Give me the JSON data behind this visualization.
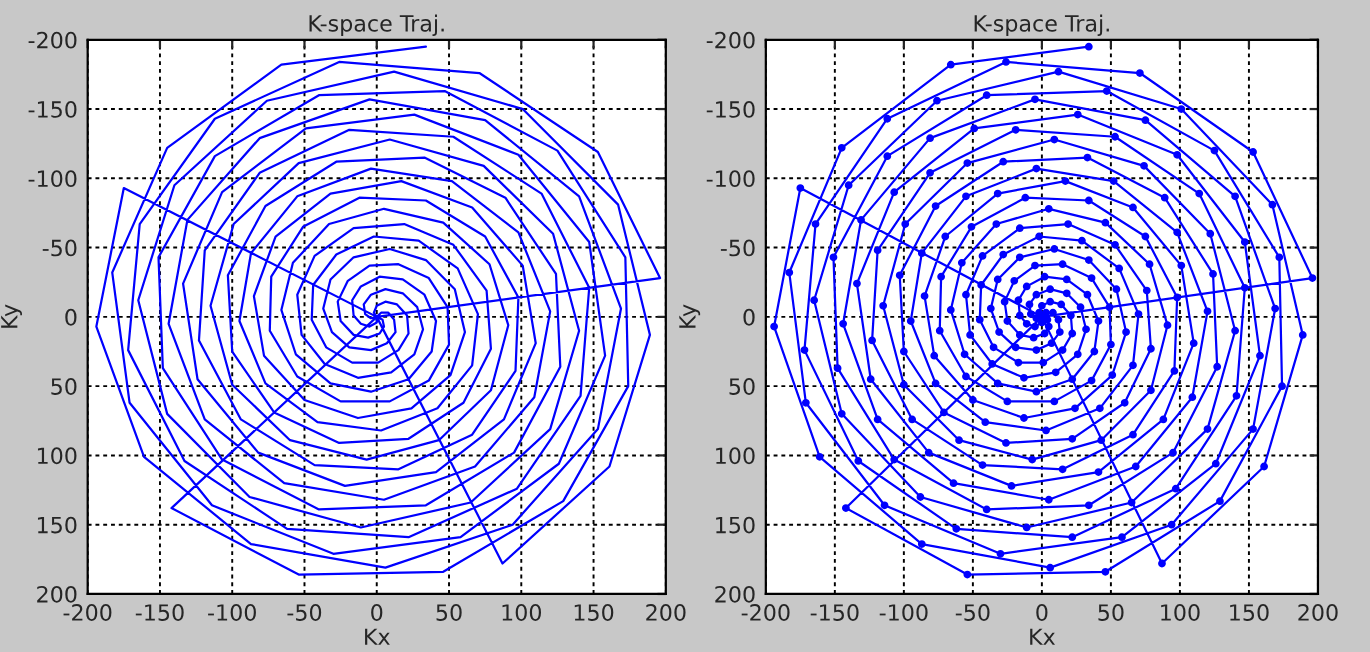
{
  "chart_data": [
    {
      "type": "line",
      "title": "K-space Traj.",
      "xlabel": "Kx",
      "ylabel": "Ky",
      "xlim": [
        -200,
        200
      ],
      "ylim": [
        200,
        -200
      ],
      "xticks": [
        -200,
        -150,
        -100,
        -50,
        0,
        50,
        100,
        150,
        200
      ],
      "yticks": [
        -200,
        -150,
        -100,
        -50,
        0,
        50,
        100,
        150,
        200
      ],
      "grid": true,
      "marker": "none",
      "line_style": "solid",
      "series": [
        {
          "color": "#0000ff",
          "x": [
            0,
            4,
            5,
            2,
            -6,
            -16,
            -25,
            -27,
            -20,
            -5,
            15,
            36,
            49,
            50,
            36,
            9,
            -25,
            -55,
            -74,
            -73,
            -51,
            -12,
            34,
            75,
            98,
            96,
            66,
            15,
            -43,
            -94,
            -123,
            -119,
            -81,
            -19,
            53,
            114,
            147,
            141,
            97,
            22,
            -62,
            -133,
            -172,
            -164,
            -112,
            -26,
            71,
            153,
            196,
            0,
            0,
            -5,
            -11,
            -16,
            -17,
            -11,
            2,
            18,
            33,
            41,
            38,
            22,
            -4,
            -32,
            -56,
            -66,
            -58,
            -33,
            5,
            46,
            78,
            91,
            79,
            43,
            -7,
            -60,
            -100,
            -115,
            -99,
            -54,
            9,
            74,
            122,
            140,
            120,
            65,
            -11,
            -88,
            -145,
            -165,
            -140,
            -76,
            12,
            101,
            167,
            189,
            161,
            87,
            0,
            -4,
            -8,
            -9,
            -4,
            6,
            18,
            28,
            32,
            26,
            10,
            -13,
            -36,
            -52,
            -55,
            -43,
            -16,
            19,
            53,
            76,
            79,
            60,
            22,
            -26,
            -71,
            -100,
            -103,
            -77,
            -28,
            33,
            89,
            124,
            127,
            95,
            34,
            -40,
            -107,
            -148,
            -151,
            -112,
            -40,
            47,
            125,
            172,
            174,
            129,
            46,
            -54,
            -142,
            0,
            -2,
            0,
            6,
            14,
            21,
            22,
            15,
            1,
            -17,
            -35,
            -45,
            -44,
            -28,
            -2,
            29,
            56,
            70,
            66,
            42,
            3,
            -41,
            -77,
            -95,
            -87,
            -55,
            -4,
            52,
            98,
            120,
            109,
            68,
            5,
            -64,
            -119,
            -144,
            -131,
            -81,
            -5,
            75,
            140,
            169,
            153,
            94,
            6,
            -87,
            -161,
            -194,
            -175,
            0,
            3,
            8,
            12,
            13,
            7,
            -4,
            -19,
            -31,
            -37,
            -32,
            -16,
            9,
            34,
            54,
            61,
            51,
            24,
            -13,
            -50,
            -78,
            -85,
            -70,
            -32,
            17,
            66,
            101,
            110,
            88,
            41,
            -22,
            -82,
            -124,
            -134,
            -107,
            -49,
            26,
            98,
            147,
            158,
            126,
            58,
            -30,
            -114,
            -171,
            -183,
            -145,
            -66,
            34
          ],
          "values": [
            0,
            2,
            7,
            12,
            15,
            13,
            3,
            -11,
            -26,
            -37,
            -38,
            -28,
            -7,
            20,
            46,
            61,
            61,
            43,
            10,
            -29,
            -65,
            -86,
            -84,
            -58,
            -14,
            39,
            85,
            110,
            107,
            74,
            17,
            -48,
            -104,
            -135,
            -130,
            -89,
            -21,
            57,
            124,
            159,
            153,
            104,
            24,
            -67,
            -143,
            -184,
            -176,
            -119,
            -28,
            0,
            4,
            7,
            5,
            -1,
            -12,
            -22,
            -29,
            -27,
            -16,
            3,
            25,
            45,
            54,
            48,
            27,
            -5,
            -39,
            -67,
            -78,
            -68,
            -38,
            6,
            53,
            89,
            103,
            89,
            49,
            -8,
            -67,
            -111,
            -128,
            -109,
            -60,
            10,
            81,
            134,
            152,
            130,
            70,
            -12,
            -95,
            -156,
            -177,
            -150,
            -81,
            13,
            108,
            178,
            0,
            1,
            -2,
            -9,
            -16,
            -20,
            -17,
            -7,
            9,
            27,
            40,
            44,
            34,
            13,
            -16,
            -44,
            -64,
            -67,
            -52,
            -19,
            23,
            62,
            88,
            91,
            69,
            25,
            -30,
            -80,
            -112,
            -115,
            -86,
            -31,
            36,
            98,
            136,
            139,
            103,
            37,
            -43,
            -116,
            -160,
            -163,
            -120,
            -43,
            50,
            133,
            184,
            186,
            138,
            0,
            -3,
            -8,
            -11,
            -9,
            -1,
            12,
            24,
            33,
            33,
            22,
            2,
            -23,
            -45,
            -58,
            -55,
            -35,
            -2,
            35,
            66,
            82,
            76,
            48,
            3,
            -46,
            -87,
            -107,
            -98,
            -61,
            -4,
            58,
            108,
            132,
            120,
            74,
            5,
            -70,
            -129,
            -157,
            -142,
            -87,
            -6,
            81,
            150,
            181,
            164,
            101,
            7,
            -93,
            0,
            -3,
            -3,
            2,
            11,
            19,
            24,
            22,
            11,
            -6,
            -27,
            -43,
            -49,
            -41,
            -20,
            11,
            42,
            66,
            73,
            60,
            28,
            -15,
            -58,
            -89,
            -98,
            -79,
            -37,
            19,
            74,
            112,
            122,
            98,
            45,
            -24,
            -90,
            -136,
            -146,
            -117,
            -54,
            28,
            106,
            159,
            171,
            136,
            62,
            -32,
            -122,
            -182,
            -195
          ]
        }
      ]
    },
    {
      "type": "line",
      "title": "K-space Traj.",
      "xlabel": "Kx",
      "ylabel": "Ky",
      "xlim": [
        -200,
        200
      ],
      "ylim": [
        200,
        -200
      ],
      "xticks": [
        -200,
        -150,
        -100,
        -50,
        0,
        50,
        100,
        150,
        200
      ],
      "yticks": [
        -200,
        -150,
        -100,
        -50,
        0,
        50,
        100,
        150,
        200
      ],
      "grid": true,
      "marker": "circle",
      "line_style": "solid",
      "series": [
        {
          "color": "#0000ff",
          "x": [
            0,
            4,
            5,
            2,
            -6,
            -16,
            -25,
            -27,
            -20,
            -5,
            15,
            36,
            49,
            50,
            36,
            9,
            -25,
            -55,
            -74,
            -73,
            -51,
            -12,
            34,
            75,
            98,
            96,
            66,
            15,
            -43,
            -94,
            -123,
            -119,
            -81,
            -19,
            53,
            114,
            147,
            141,
            97,
            22,
            -62,
            -133,
            -172,
            -164,
            -112,
            -26,
            71,
            153,
            196,
            0,
            0,
            -5,
            -11,
            -16,
            -17,
            -11,
            2,
            18,
            33,
            41,
            38,
            22,
            -4,
            -32,
            -56,
            -66,
            -58,
            -33,
            5,
            46,
            78,
            91,
            79,
            43,
            -7,
            -60,
            -100,
            -115,
            -99,
            -54,
            9,
            74,
            122,
            140,
            120,
            65,
            -11,
            -88,
            -145,
            -165,
            -140,
            -76,
            12,
            101,
            167,
            189,
            161,
            87,
            0,
            -4,
            -8,
            -9,
            -4,
            6,
            18,
            28,
            32,
            26,
            10,
            -13,
            -36,
            -52,
            -55,
            -43,
            -16,
            19,
            53,
            76,
            79,
            60,
            22,
            -26,
            -71,
            -100,
            -103,
            -77,
            -28,
            33,
            89,
            124,
            127,
            95,
            34,
            -40,
            -107,
            -148,
            -151,
            -112,
            -40,
            47,
            125,
            172,
            174,
            129,
            46,
            -54,
            -142,
            0,
            -2,
            0,
            6,
            14,
            21,
            22,
            15,
            1,
            -17,
            -35,
            -45,
            -44,
            -28,
            -2,
            29,
            56,
            70,
            66,
            42,
            3,
            -41,
            -77,
            -95,
            -87,
            -55,
            -4,
            52,
            98,
            120,
            109,
            68,
            5,
            -64,
            -119,
            -144,
            -131,
            -81,
            -5,
            75,
            140,
            169,
            153,
            94,
            6,
            -87,
            -161,
            -194,
            -175,
            0,
            3,
            8,
            12,
            13,
            7,
            -4,
            -19,
            -31,
            -37,
            -32,
            -16,
            9,
            34,
            54,
            61,
            51,
            24,
            -13,
            -50,
            -78,
            -85,
            -70,
            -32,
            17,
            66,
            101,
            110,
            88,
            41,
            -22,
            -82,
            -124,
            -134,
            -107,
            -49,
            26,
            98,
            147,
            158,
            126,
            58,
            -30,
            -114,
            -171,
            -183,
            -145,
            -66,
            34
          ],
          "values": [
            0,
            2,
            7,
            12,
            15,
            13,
            3,
            -11,
            -26,
            -37,
            -38,
            -28,
            -7,
            20,
            46,
            61,
            61,
            43,
            10,
            -29,
            -65,
            -86,
            -84,
            -58,
            -14,
            39,
            85,
            110,
            107,
            74,
            17,
            -48,
            -104,
            -135,
            -130,
            -89,
            -21,
            57,
            124,
            159,
            153,
            104,
            24,
            -67,
            -143,
            -184,
            -176,
            -119,
            -28,
            0,
            4,
            7,
            5,
            -1,
            -12,
            -22,
            -29,
            -27,
            -16,
            3,
            25,
            45,
            54,
            48,
            27,
            -5,
            -39,
            -67,
            -78,
            -68,
            -38,
            6,
            53,
            89,
            103,
            89,
            49,
            -8,
            -67,
            -111,
            -128,
            -109,
            -60,
            10,
            81,
            134,
            152,
            130,
            70,
            -12,
            -95,
            -156,
            -177,
            -150,
            -81,
            13,
            108,
            178,
            0,
            1,
            -2,
            -9,
            -16,
            -20,
            -17,
            -7,
            9,
            27,
            40,
            44,
            34,
            13,
            -16,
            -44,
            -64,
            -67,
            -52,
            -19,
            23,
            62,
            88,
            91,
            69,
            25,
            -30,
            -80,
            -112,
            -115,
            -86,
            -31,
            36,
            98,
            136,
            139,
            103,
            37,
            -43,
            -116,
            -160,
            -163,
            -120,
            -43,
            50,
            133,
            184,
            186,
            138,
            0,
            -3,
            -8,
            -11,
            -9,
            -1,
            12,
            24,
            33,
            33,
            22,
            2,
            -23,
            -45,
            -58,
            -55,
            -35,
            -2,
            35,
            66,
            82,
            76,
            48,
            3,
            -46,
            -87,
            -107,
            -98,
            -61,
            -4,
            58,
            108,
            132,
            120,
            74,
            5,
            -70,
            -129,
            -157,
            -142,
            -87,
            -6,
            81,
            150,
            181,
            164,
            101,
            7,
            -93,
            0,
            -3,
            -3,
            2,
            11,
            19,
            24,
            22,
            11,
            -6,
            -27,
            -43,
            -49,
            -41,
            -20,
            11,
            42,
            66,
            73,
            60,
            28,
            -15,
            -58,
            -89,
            -98,
            -79,
            -37,
            19,
            74,
            112,
            122,
            98,
            45,
            -24,
            -90,
            -136,
            -146,
            -117,
            -54,
            28,
            106,
            159,
            171,
            136,
            62,
            -32,
            -122,
            -182,
            -195
          ]
        }
      ]
    }
  ]
}
